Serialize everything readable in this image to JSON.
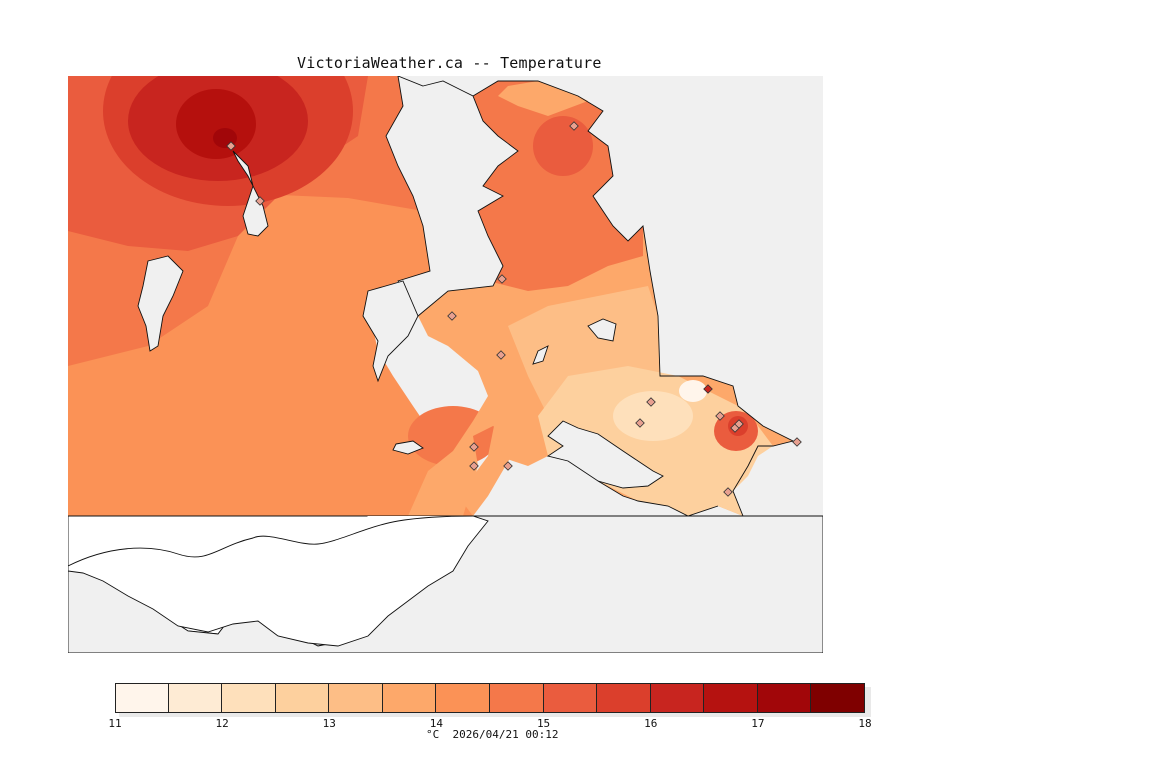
{
  "title": "VictoriaWeather.ca -- Temperature",
  "legend": {
    "unit": "°C",
    "timestamp": "2026/04/21 00:12",
    "ticks": [
      "11",
      "12",
      "13",
      "14",
      "15",
      "16",
      "17",
      "18"
    ],
    "colors": [
      "#fff5eb",
      "#feebd4",
      "#fee0bb",
      "#fdd09e",
      "#fdbe86",
      "#fda86a",
      "#fb9256",
      "#f4784a",
      "#ea5c3e",
      "#db3f2c",
      "#c8251f",
      "#b51210",
      "#a10609",
      "#7f0000"
    ]
  },
  "map": {
    "background": "#f0f0f0",
    "shading_colors": {
      "peak": "#b5100d",
      "very_high": "#c8251f",
      "high": "#db3f2c",
      "upper": "#ea5c3e",
      "mid_high": "#f4784a",
      "mid": "#fb9256",
      "lower": "#fda86a",
      "low": "#fdbe86",
      "lowest": "#fdd09e",
      "coolest": "#fee0bb"
    },
    "station_count": 17
  }
}
